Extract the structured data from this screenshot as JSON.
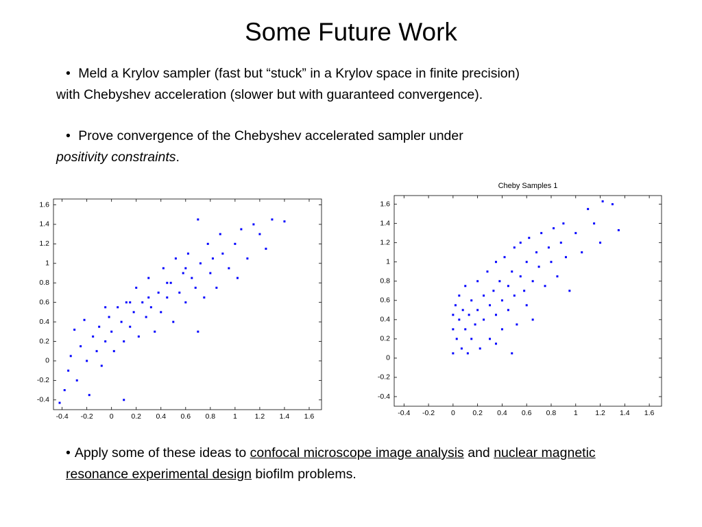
{
  "slide": {
    "title": "Some Future Work",
    "bullets": [
      {
        "lines": [
          "Meld a Krylov sampler (fast but “stuck” in a Krylov space in finite precision)",
          "with Chebyshev acceleration (slower but with guaranteed convergence)."
        ]
      },
      {
        "segments": [
          "Prove convergence of the Chebyshev accelerated sampler under",
          "positivity constraints",
          "."
        ]
      },
      {
        "segments": [
          "Apply some of these ideas to ",
          "confocal microscope image analysis",
          " and ",
          "nuclear magnetic resonance experimental design",
          " biofilm problems."
        ]
      }
    ]
  },
  "chart_data": [
    {
      "type": "scatter",
      "color": "#0000ff",
      "x": [
        -0.42,
        -0.38,
        -0.35,
        -0.33,
        -0.3,
        -0.28,
        -0.25,
        -0.22,
        -0.2,
        -0.18,
        -0.15,
        -0.12,
        -0.1,
        -0.08,
        -0.05,
        -0.02,
        0.0,
        0.02,
        0.05,
        0.08,
        0.1,
        0.1,
        0.12,
        0.15,
        0.18,
        0.2,
        0.22,
        0.25,
        0.28,
        0.3,
        0.32,
        0.35,
        0.38,
        0.4,
        0.42,
        0.45,
        0.48,
        0.5,
        0.52,
        0.55,
        0.58,
        0.6,
        0.62,
        0.65,
        0.68,
        0.7,
        0.7,
        0.72,
        0.75,
        0.78,
        0.8,
        0.82,
        0.85,
        0.88,
        0.9,
        0.95,
        1.0,
        1.02,
        1.05,
        1.1,
        1.15,
        1.2,
        1.25,
        1.3,
        1.4,
        0.3,
        0.15,
        -0.05,
        0.45,
        0.6
      ],
      "values": [
        -0.43,
        -0.3,
        -0.1,
        0.05,
        0.32,
        -0.2,
        0.15,
        0.42,
        0.0,
        -0.35,
        0.25,
        0.1,
        0.35,
        -0.05,
        0.2,
        0.45,
        0.3,
        0.1,
        0.55,
        0.4,
        0.2,
        -0.4,
        0.6,
        0.35,
        0.5,
        0.75,
        0.25,
        0.6,
        0.45,
        0.85,
        0.55,
        0.3,
        0.7,
        0.5,
        0.95,
        0.65,
        0.8,
        0.4,
        1.05,
        0.7,
        0.9,
        0.6,
        1.1,
        0.85,
        0.75,
        1.45,
        0.3,
        1.0,
        0.65,
        1.2,
        0.9,
        1.05,
        0.75,
        1.3,
        1.1,
        0.95,
        1.2,
        0.85,
        1.35,
        1.05,
        1.4,
        1.3,
        1.15,
        1.45,
        1.43,
        0.65,
        0.6,
        0.55,
        0.8,
        0.95
      ],
      "xlim": [
        -0.47,
        1.7
      ],
      "ylim": [
        -0.5,
        1.66
      ],
      "xticks": [
        -0.4,
        -0.2,
        0,
        0.2,
        0.4,
        0.6,
        0.8,
        1,
        1.2,
        1.4,
        1.6
      ],
      "yticks": [
        -0.4,
        -0.2,
        0,
        0.2,
        0.4,
        0.6,
        0.8,
        1,
        1.2,
        1.4,
        1.6
      ]
    },
    {
      "type": "scatter",
      "title": "Cheby Samples 1",
      "color": "#0000ff",
      "x": [
        0.0,
        0.0,
        0.0,
        0.02,
        0.03,
        0.05,
        0.05,
        0.07,
        0.08,
        0.1,
        0.1,
        0.12,
        0.13,
        0.15,
        0.15,
        0.18,
        0.2,
        0.2,
        0.22,
        0.25,
        0.25,
        0.28,
        0.3,
        0.3,
        0.33,
        0.35,
        0.35,
        0.38,
        0.4,
        0.4,
        0.42,
        0.45,
        0.45,
        0.48,
        0.5,
        0.5,
        0.52,
        0.55,
        0.55,
        0.58,
        0.6,
        0.6,
        0.62,
        0.65,
        0.68,
        0.7,
        0.72,
        0.75,
        0.78,
        0.8,
        0.82,
        0.85,
        0.88,
        0.9,
        0.92,
        0.95,
        1.0,
        1.05,
        1.1,
        1.15,
        1.2,
        1.22,
        1.3,
        1.35,
        0.65,
        0.35,
        0.48
      ],
      "values": [
        0.05,
        0.3,
        0.45,
        0.55,
        0.2,
        0.4,
        0.65,
        0.1,
        0.5,
        0.3,
        0.75,
        0.05,
        0.45,
        0.6,
        0.2,
        0.35,
        0.8,
        0.5,
        0.1,
        0.65,
        0.4,
        0.9,
        0.55,
        0.2,
        0.7,
        1.0,
        0.45,
        0.8,
        0.6,
        0.3,
        1.05,
        0.75,
        0.5,
        0.9,
        1.15,
        0.65,
        0.35,
        0.85,
        1.2,
        0.7,
        1.0,
        0.55,
        1.25,
        0.8,
        1.1,
        0.95,
        1.3,
        0.75,
        1.15,
        1.0,
        1.35,
        0.85,
        1.2,
        1.4,
        1.05,
        0.7,
        1.3,
        1.1,
        1.55,
        1.4,
        1.2,
        1.63,
        1.6,
        1.33,
        0.4,
        0.15,
        0.05
      ],
      "xlim": [
        -0.48,
        1.7
      ],
      "ylim": [
        -0.5,
        1.69
      ],
      "xticks": [
        -0.4,
        -0.2,
        0,
        0.2,
        0.4,
        0.6,
        0.8,
        1,
        1.2,
        1.4,
        1.6
      ],
      "yticks": [
        -0.4,
        -0.2,
        0,
        0.2,
        0.4,
        0.6,
        0.8,
        1,
        1.2,
        1.4,
        1.6
      ]
    }
  ]
}
